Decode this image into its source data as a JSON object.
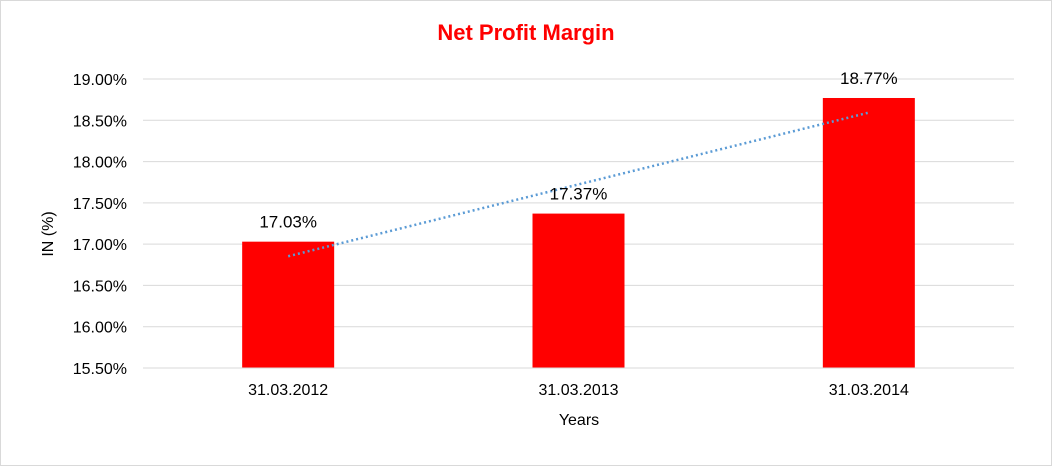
{
  "chart_data": {
    "type": "bar",
    "title": "Net Profit Margin",
    "xlabel": "Years",
    "ylabel": "IN (%)",
    "categories": [
      "31.03.2012",
      "31.03.2013",
      "31.03.2014"
    ],
    "values": [
      17.03,
      17.37,
      18.77
    ],
    "data_labels": [
      "17.03%",
      "17.37%",
      "18.77%"
    ],
    "ylim": [
      15.5,
      19.0
    ],
    "y_ticks": [
      15.5,
      16.0,
      16.5,
      17.0,
      17.5,
      18.0,
      18.5,
      19.0
    ],
    "y_tick_labels": [
      "15.50%",
      "16.00%",
      "16.50%",
      "17.00%",
      "17.50%",
      "18.00%",
      "18.50%",
      "19.00%"
    ],
    "trendline": {
      "type": "linear",
      "style": "dotted"
    },
    "grid": true,
    "legend": "none",
    "colors": {
      "bar": "#ff0000",
      "title": "#ff0000",
      "trendline": "#5b9bd5",
      "grid": "#d9d9d9"
    }
  }
}
